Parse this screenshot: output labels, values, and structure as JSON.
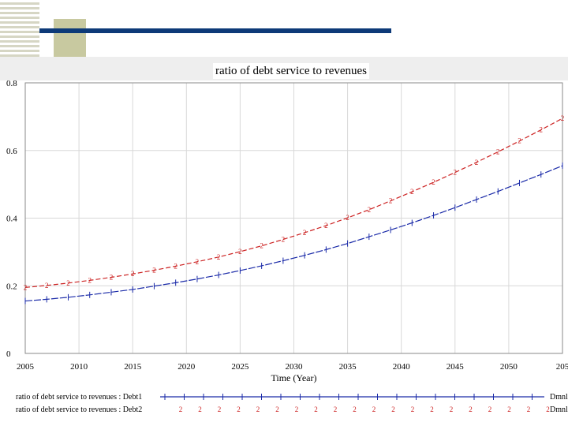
{
  "colors": {
    "accent_blue": "#0d3a78",
    "olive": "#c8c9a0",
    "series_1": "#1a2aa8",
    "series_2": "#cc2222",
    "grid": "#d8d8d8"
  },
  "chart_data": {
    "type": "line",
    "title": "ratio of debt service to revenues",
    "xlabel": "Time (Year)",
    "ylabel": "",
    "xlim": [
      2005,
      2055
    ],
    "ylim": [
      0,
      0.8
    ],
    "grid": true,
    "x_ticks": [
      "2005",
      "2010",
      "2015",
      "2020",
      "2025",
      "2030",
      "2035",
      "2040",
      "2045",
      "2050",
      "205"
    ],
    "y_ticks": [
      "0",
      "0.2",
      "0.4",
      "0.6",
      "0.8"
    ],
    "x": [
      2005,
      2007,
      2009,
      2011,
      2013,
      2015,
      2017,
      2019,
      2021,
      2023,
      2025,
      2027,
      2029,
      2031,
      2033,
      2035,
      2037,
      2039,
      2041,
      2043,
      2045,
      2047,
      2049,
      2051,
      2053,
      2055
    ],
    "series": [
      {
        "name": "ratio of debt service to revenues : Debt1",
        "marker": "1",
        "unit_label": "Dmnl",
        "values": [
          0.155,
          0.16,
          0.166,
          0.173,
          0.181,
          0.189,
          0.199,
          0.209,
          0.22,
          0.232,
          0.245,
          0.259,
          0.274,
          0.29,
          0.307,
          0.325,
          0.345,
          0.365,
          0.386,
          0.408,
          0.431,
          0.455,
          0.479,
          0.504,
          0.529,
          0.555
        ]
      },
      {
        "name": "ratio of debt service to revenues : Debt2",
        "marker": "2",
        "unit_label": "Dmnl",
        "values": [
          0.195,
          0.201,
          0.208,
          0.216,
          0.225,
          0.235,
          0.246,
          0.258,
          0.271,
          0.285,
          0.301,
          0.318,
          0.337,
          0.357,
          0.378,
          0.401,
          0.425,
          0.451,
          0.478,
          0.506,
          0.535,
          0.565,
          0.596,
          0.628,
          0.661,
          0.695
        ]
      }
    ]
  }
}
